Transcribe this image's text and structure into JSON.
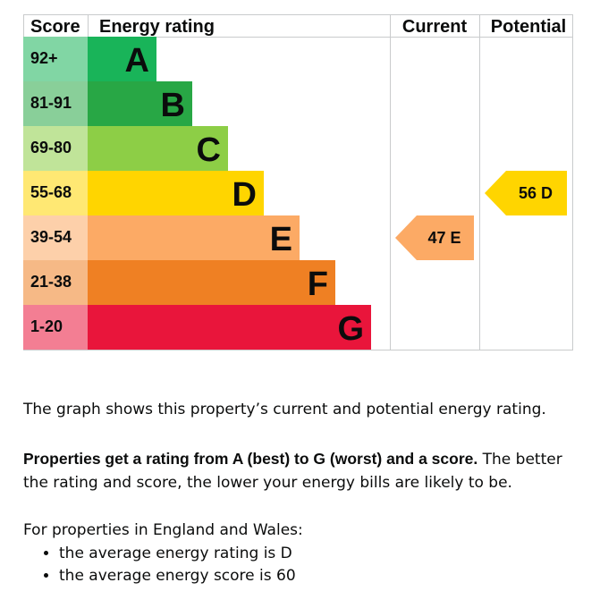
{
  "chart_data": {
    "type": "bar",
    "headers": {
      "score": "Score",
      "rating": "Energy rating",
      "current": "Current",
      "potential": "Potential"
    },
    "bands": [
      {
        "score_range": "92+",
        "letter": "A",
        "color": "#19b459"
      },
      {
        "score_range": "81-91",
        "letter": "B",
        "color": "#28a745"
      },
      {
        "score_range": "69-80",
        "letter": "C",
        "color": "#8dce46"
      },
      {
        "score_range": "55-68",
        "letter": "D",
        "color": "#ffd500"
      },
      {
        "score_range": "39-54",
        "letter": "E",
        "color": "#fcaa65"
      },
      {
        "score_range": "21-38",
        "letter": "F",
        "color": "#ef8023"
      },
      {
        "score_range": "1-20",
        "letter": "G",
        "color": "#e9153b"
      }
    ],
    "current": {
      "score": 47,
      "letter": "E",
      "label": "47 E",
      "color": "#fcaa65"
    },
    "potential": {
      "score": 56,
      "letter": "D",
      "label": "56 D",
      "color": "#ffd500"
    }
  },
  "text": {
    "intro": "The graph shows this property’s current and potential energy rating.",
    "rating_bold": "Properties get a rating from A (best) to G (worst) and a score.",
    "rating_rest": " The better the rating and score, the lower your energy bills are likely to be.",
    "region": "For properties in England and Wales:",
    "averages": [
      "the average energy rating is D",
      "the average energy score is 60"
    ]
  }
}
